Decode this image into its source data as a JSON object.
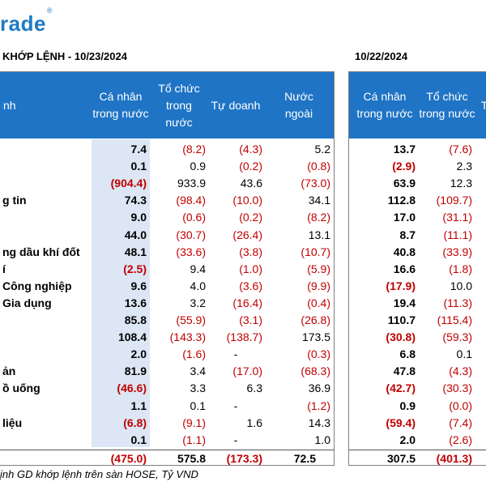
{
  "brand": {
    "name": "rade",
    "mark": "®"
  },
  "left_title": "KHỚP LỆNH - 10/23/2024",
  "right_title": "10/22/2024",
  "left_headers": {
    "sector": "nh",
    "individual": "Cá nhân trong nước",
    "institution": "Tổ chức trong nước",
    "proprietary": "Tự doanh",
    "foreign": "Nước ngoài"
  },
  "right_headers": {
    "individual": "Cá nhân trong nước",
    "institution": "Tổ chức trong nước",
    "cut": "T"
  },
  "rows": [
    {
      "name": "",
      "ind": "7.4",
      "inst": "(8.2)",
      "prop": "(4.3)",
      "frg": "5.2",
      "r_ind": "13.7",
      "r_inst": "(7.6)"
    },
    {
      "name": "",
      "ind": "0.1",
      "inst": "0.9",
      "prop": "(0.2)",
      "frg": "(0.8)",
      "r_ind": "(2.9)",
      "r_inst": "2.3"
    },
    {
      "name": "",
      "ind": "(904.4)",
      "inst": "933.9",
      "prop": "43.6",
      "frg": "(73.0)",
      "r_ind": "63.9",
      "r_inst": "12.3"
    },
    {
      "name": "g tin",
      "ind": "74.3",
      "inst": "(98.4)",
      "prop": "(10.0)",
      "frg": "34.1",
      "r_ind": "112.8",
      "r_inst": "(109.7)"
    },
    {
      "name": "",
      "ind": "9.0",
      "inst": "(0.6)",
      "prop": "(0.2)",
      "frg": "(8.2)",
      "r_ind": "17.0",
      "r_inst": "(31.1)"
    },
    {
      "name": "",
      "ind": "44.0",
      "inst": "(30.7)",
      "prop": "(26.4)",
      "frg": "13.1",
      "r_ind": "8.7",
      "r_inst": "(11.1)"
    },
    {
      "name": "ng dầu khí đốt",
      "ind": "48.1",
      "inst": "(33.6)",
      "prop": "(3.8)",
      "frg": "(10.7)",
      "r_ind": "40.8",
      "r_inst": "(33.9)"
    },
    {
      "name": "í",
      "ind": "(2.5)",
      "inst": "9.4",
      "prop": "(1.0)",
      "frg": "(5.9)",
      "r_ind": "16.6",
      "r_inst": "(1.8)"
    },
    {
      "name": "Công nghiệp",
      "ind": "9.6",
      "inst": "4.0",
      "prop": "(3.6)",
      "frg": "(9.9)",
      "r_ind": "(17.9)",
      "r_inst": "10.0"
    },
    {
      "name": "Gia dụng",
      "ind": "13.6",
      "inst": "3.2",
      "prop": "(16.4)",
      "frg": "(0.4)",
      "r_ind": "19.4",
      "r_inst": "(11.3)"
    },
    {
      "name": "",
      "ind": "85.8",
      "inst": "(55.9)",
      "prop": "(3.1)",
      "frg": "(26.8)",
      "r_ind": "110.7",
      "r_inst": "(115.4)"
    },
    {
      "name": "",
      "ind": "108.4",
      "inst": "(143.3)",
      "prop": "(138.7)",
      "frg": "173.5",
      "r_ind": "(30.8)",
      "r_inst": "(59.3)"
    },
    {
      "name": "",
      "ind": "2.0",
      "inst": "(1.6)",
      "prop": "-",
      "frg": "(0.3)",
      "r_ind": "6.8",
      "r_inst": "0.1"
    },
    {
      "name": "ản",
      "ind": "81.9",
      "inst": "3.4",
      "prop": "(17.0)",
      "frg": "(68.3)",
      "r_ind": "47.8",
      "r_inst": "(4.3)"
    },
    {
      "name": "ồ uống",
      "ind": "(46.6)",
      "inst": "3.3",
      "prop": "6.3",
      "frg": "36.9",
      "r_ind": "(42.7)",
      "r_inst": "(30.3)"
    },
    {
      "name": "",
      "ind": "1.1",
      "inst": "0.1",
      "prop": "-",
      "frg": "(1.2)",
      "r_ind": "0.9",
      "r_inst": "(0.0)"
    },
    {
      "name": "liệu",
      "ind": "(6.8)",
      "inst": "(9.1)",
      "prop": "1.6",
      "frg": "14.3",
      "r_ind": "(59.4)",
      "r_inst": "(7.4)"
    },
    {
      "name": "",
      "ind": "0.1",
      "inst": "(1.1)",
      "prop": "-",
      "frg": "1.0",
      "r_ind": "2.0",
      "r_inst": "(2.6)"
    }
  ],
  "total": {
    "ind": "(475.0)",
    "inst": "575.8",
    "prop": "(173.3)",
    "frg": "72.5",
    "r_ind": "307.5",
    "r_inst": "(401.3)"
  },
  "footnote": "ịnh GD khớp lệnh trên sàn HOSE, Tỷ VND"
}
